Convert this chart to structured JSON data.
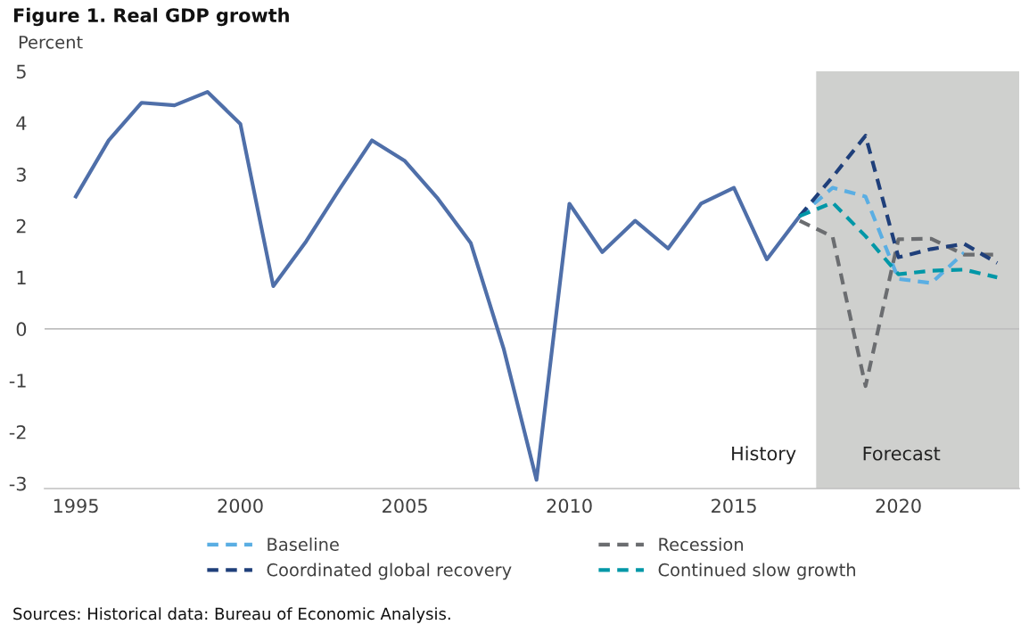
{
  "chart_data": {
    "type": "line",
    "title": "Figure 1. Real GDP growth",
    "ylabel": "Percent",
    "xlim": [
      1994.05,
      2023.67
    ],
    "xticks": [
      1995,
      2000,
      2005,
      2010,
      2015,
      2020
    ],
    "ylim": [
      -3.1,
      5
    ],
    "yticks": [
      -3,
      -2,
      -1,
      0,
      1,
      2,
      3,
      4,
      5
    ],
    "grid": false,
    "legend": "bottom",
    "marker": "none",
    "series": [
      {
        "color": "#4f6fa9",
        "line_style": "solid",
        "x": [
          1995,
          1996,
          1997,
          1998,
          1999,
          2000,
          2001,
          2002,
          2003,
          2004,
          2005,
          2006,
          2007,
          2008,
          2009,
          2010,
          2011,
          2012,
          2013,
          2014,
          2015,
          2016,
          2017
        ],
        "values": [
          2.57,
          3.66,
          4.39,
          4.34,
          4.6,
          3.98,
          0.83,
          1.7,
          2.7,
          3.66,
          3.26,
          2.53,
          1.67,
          -0.38,
          -2.93,
          2.43,
          1.49,
          2.1,
          1.56,
          2.43,
          2.74,
          1.35,
          2.19
        ]
      },
      {
        "name": "Baseline",
        "color": "#5aaee3",
        "line_style": "dashed",
        "x": [
          2017,
          2018,
          2019,
          2020,
          2021,
          2022
        ],
        "values": [
          2.19,
          2.74,
          2.57,
          0.97,
          0.89,
          1.48
        ]
      },
      {
        "name": "Recession",
        "color": "#6b6d70",
        "line_style": "dashed",
        "x": [
          2017,
          2018,
          2019,
          2020,
          2021,
          2022,
          2023
        ],
        "values": [
          2.1,
          1.79,
          -1.11,
          1.74,
          1.75,
          1.44,
          1.44
        ]
      },
      {
        "name": "Coordinated global recovery",
        "color": "#1f3f7a",
        "line_style": "dashed",
        "x": [
          2017,
          2018,
          2019,
          2020,
          2021,
          2022,
          2023
        ],
        "values": [
          2.19,
          2.95,
          3.75,
          1.39,
          1.55,
          1.65,
          1.28
        ]
      },
      {
        "name": "Continued slow growth",
        "color": "#0097a7",
        "line_style": "dashed",
        "x": [
          2017,
          2018,
          2019,
          2020,
          2021,
          2022,
          2023
        ],
        "values": [
          2.19,
          2.45,
          1.8,
          1.06,
          1.13,
          1.15,
          1.0
        ]
      }
    ],
    "ref_lines": [
      {
        "axis": "y",
        "value": 0,
        "color": "#bfbfbf"
      }
    ],
    "bands": [
      {
        "axis": "x",
        "from": 2017.5,
        "to": 2023.67,
        "label": "Forecast",
        "color": "#cfd0ce"
      }
    ],
    "annotations": [
      "History",
      "Sources: Historical data: Bureau of Economic Analysis."
    ]
  }
}
